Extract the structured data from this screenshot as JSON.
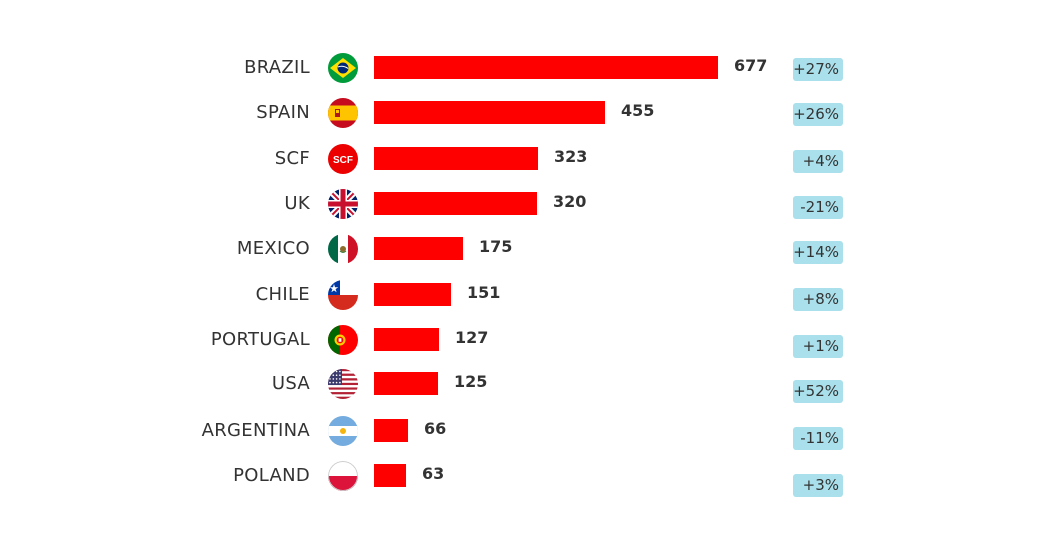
{
  "colors": {
    "bar": "#ff0000",
    "badge": "#a9e0eb",
    "text": "#333333"
  },
  "chart_data": {
    "type": "bar",
    "orientation": "horizontal",
    "categories": [
      "BRAZIL",
      "SPAIN",
      "SCF",
      "UK",
      "MEXICO",
      "CHILE",
      "PORTUGAL",
      "USA",
      "ARGENTINA",
      "POLAND"
    ],
    "values": [
      677,
      455,
      323,
      320,
      175,
      151,
      127,
      125,
      66,
      63
    ],
    "changes": [
      "+27%",
      "+26%",
      "+4%",
      "-21%",
      "+14%",
      "+8%",
      "+1%",
      "+52%",
      "-11%",
      "+3%"
    ],
    "icons": [
      "brazil-flag-icon",
      "spain-flag-icon",
      "scf-logo-icon",
      "uk-flag-icon",
      "mexico-flag-icon",
      "chile-flag-icon",
      "portugal-flag-icon",
      "usa-flag-icon",
      "argentina-flag-icon",
      "poland-flag-icon"
    ],
    "scf_icon_text": "SCF",
    "title": "",
    "xlabel": "",
    "ylabel": "",
    "xlim": [
      0,
      677
    ],
    "grid": false,
    "legend": "none"
  }
}
